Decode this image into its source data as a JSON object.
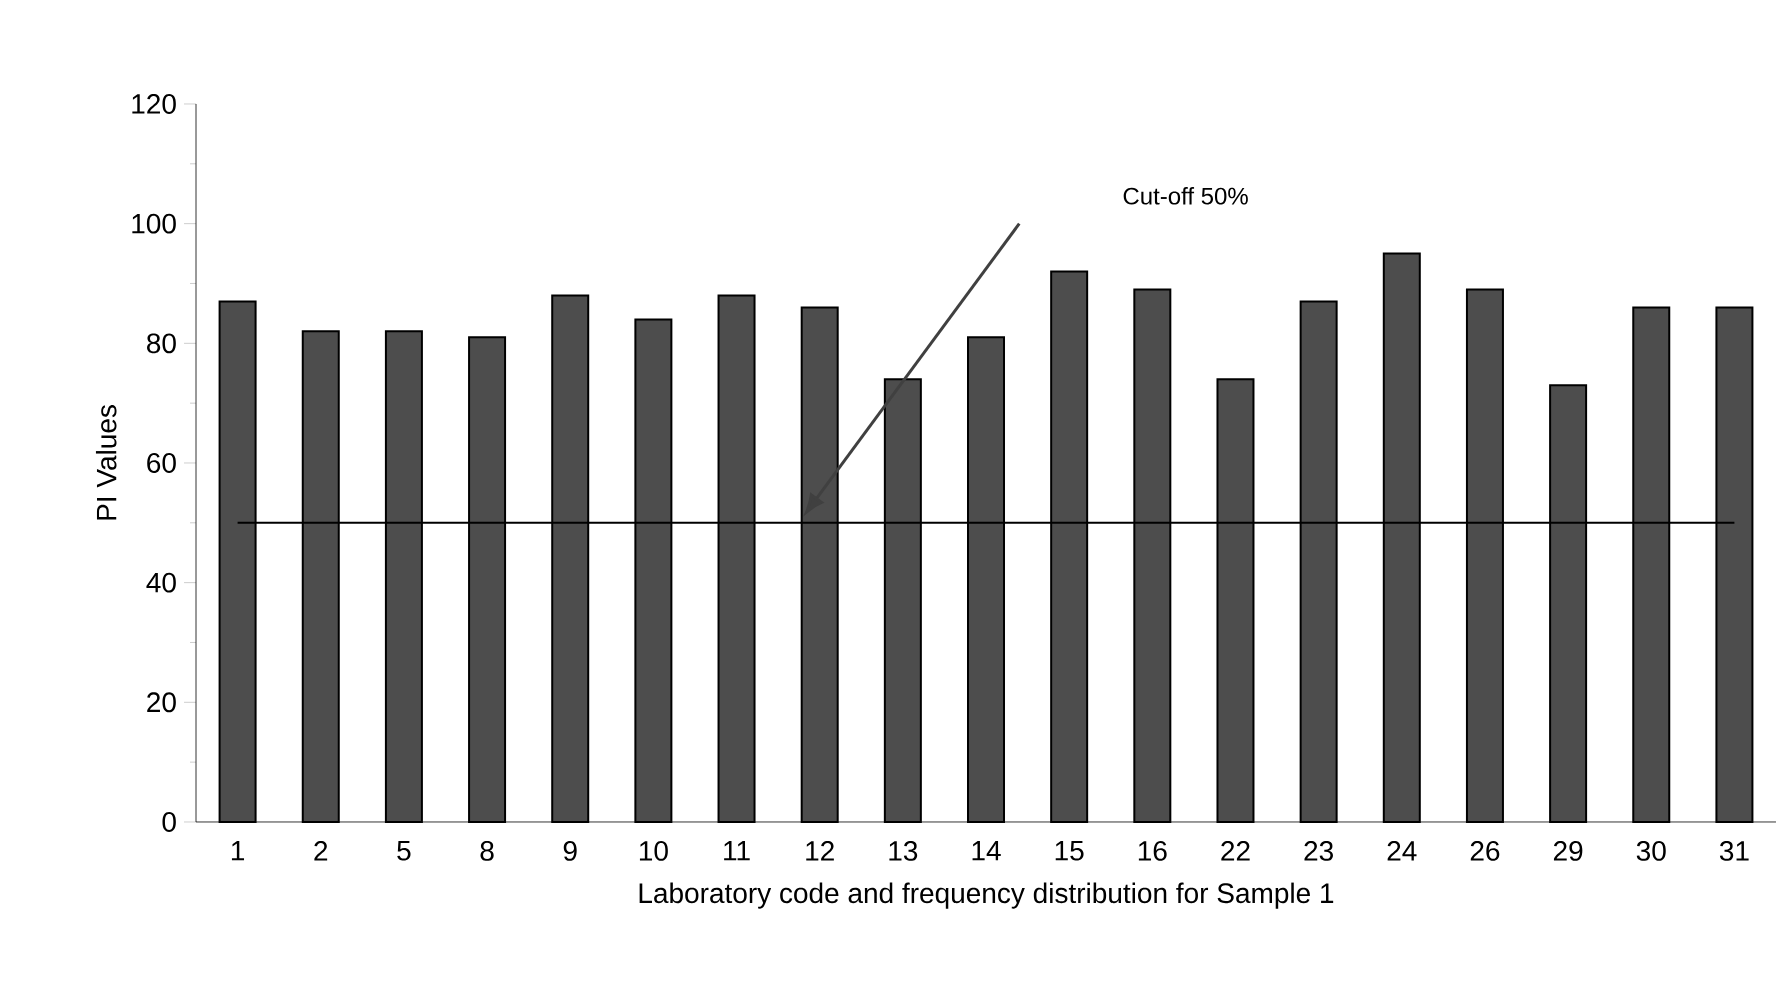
{
  "chart_data": {
    "type": "bar",
    "xlabel": "Laboratory code and frequency distribution for Sample 1",
    "ylabel": "PI Values",
    "categories": [
      "1",
      "2",
      "5",
      "8",
      "9",
      "10",
      "11",
      "12",
      "13",
      "14",
      "15",
      "16",
      "22",
      "23",
      "24",
      "26",
      "29",
      "30",
      "31"
    ],
    "values": [
      87,
      82,
      82,
      81,
      88,
      84,
      88,
      86,
      74,
      81,
      92,
      89,
      74,
      87,
      95,
      89,
      73,
      86,
      86
    ],
    "color": "#4d4d4d",
    "ylim": [
      0,
      120
    ],
    "yticks": [
      0,
      20,
      40,
      60,
      80,
      100,
      120
    ],
    "ref_lines": [
      {
        "axis": "y",
        "value": 50,
        "label": "Cut-off 50%"
      }
    ],
    "grid": false
  }
}
